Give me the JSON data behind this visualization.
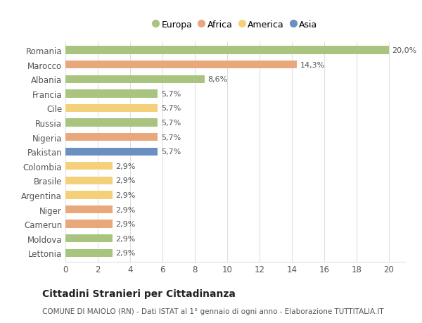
{
  "categories": [
    "Romania",
    "Marocco",
    "Albania",
    "Francia",
    "Cile",
    "Russia",
    "Nigeria",
    "Pakistan",
    "Colombia",
    "Brasile",
    "Argentina",
    "Niger",
    "Camerun",
    "Moldova",
    "Lettonia"
  ],
  "values": [
    20.0,
    14.3,
    8.6,
    5.7,
    5.7,
    5.7,
    5.7,
    5.7,
    2.9,
    2.9,
    2.9,
    2.9,
    2.9,
    2.9,
    2.9
  ],
  "labels": [
    "20,0%",
    "14,3%",
    "8,6%",
    "5,7%",
    "5,7%",
    "5,7%",
    "5,7%",
    "5,7%",
    "2,9%",
    "2,9%",
    "2,9%",
    "2,9%",
    "2,9%",
    "2,9%",
    "2,9%"
  ],
  "continent": [
    "Europa",
    "Africa",
    "Europa",
    "Europa",
    "America",
    "Europa",
    "Africa",
    "Asia",
    "America",
    "America",
    "America",
    "Africa",
    "Africa",
    "Europa",
    "Europa"
  ],
  "colors": {
    "Europa": "#a8c47e",
    "Africa": "#e8a87c",
    "America": "#f5d07a",
    "Asia": "#6b8fc0"
  },
  "title": "Cittadini Stranieri per Cittadinanza",
  "subtitle": "COMUNE DI MAIOLO (RN) - Dati ISTAT al 1° gennaio di ogni anno - Elaborazione TUTTITALIA.IT",
  "xlim": [
    0,
    21
  ],
  "xticks": [
    0,
    2,
    4,
    6,
    8,
    10,
    12,
    14,
    16,
    18,
    20
  ],
  "background_color": "#ffffff",
  "grid_color": "#e0e0e0",
  "bar_height": 0.55,
  "title_fontsize": 10,
  "subtitle_fontsize": 7.5,
  "tick_fontsize": 8.5,
  "label_fontsize": 8,
  "legend_fontsize": 9,
  "legend_order": [
    "Europa",
    "Africa",
    "America",
    "Asia"
  ]
}
